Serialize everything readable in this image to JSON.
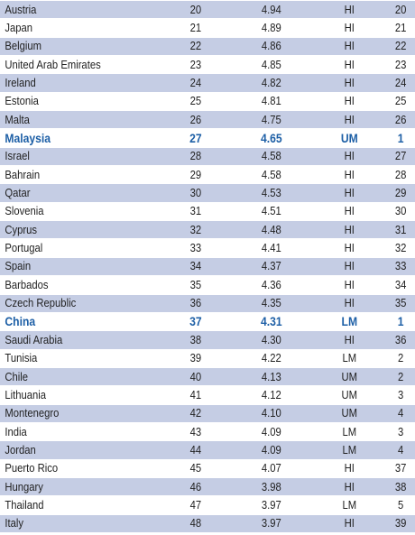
{
  "rows": [
    {
      "country": "Austria",
      "rank": "20",
      "score": "4.94",
      "group": "HI",
      "group_rank": "20",
      "shaded": true,
      "highlight": false
    },
    {
      "country": "Japan",
      "rank": "21",
      "score": "4.89",
      "group": "HI",
      "group_rank": "21",
      "shaded": false,
      "highlight": false
    },
    {
      "country": "Belgium",
      "rank": "22",
      "score": "4.86",
      "group": "HI",
      "group_rank": "22",
      "shaded": true,
      "highlight": false
    },
    {
      "country": "United Arab Emirates",
      "rank": "23",
      "score": "4.85",
      "group": "HI",
      "group_rank": "23",
      "shaded": false,
      "highlight": false
    },
    {
      "country": "Ireland",
      "rank": "24",
      "score": "4.82",
      "group": "HI",
      "group_rank": "24",
      "shaded": true,
      "highlight": false
    },
    {
      "country": "Estonia",
      "rank": "25",
      "score": "4.81",
      "group": "HI",
      "group_rank": "25",
      "shaded": false,
      "highlight": false
    },
    {
      "country": "Malta",
      "rank": "26",
      "score": "4.75",
      "group": "HI",
      "group_rank": "26",
      "shaded": true,
      "highlight": false
    },
    {
      "country": "Malaysia",
      "rank": "27",
      "score": "4.65",
      "group": "UM",
      "group_rank": "1",
      "shaded": false,
      "highlight": true
    },
    {
      "country": "Israel",
      "rank": "28",
      "score": "4.58",
      "group": "HI",
      "group_rank": "27",
      "shaded": true,
      "highlight": false
    },
    {
      "country": "Bahrain",
      "rank": "29",
      "score": "4.58",
      "group": "HI",
      "group_rank": "28",
      "shaded": false,
      "highlight": false
    },
    {
      "country": "Qatar",
      "rank": "30",
      "score": "4.53",
      "group": "HI",
      "group_rank": "29",
      "shaded": true,
      "highlight": false
    },
    {
      "country": "Slovenia",
      "rank": "31",
      "score": "4.51",
      "group": "HI",
      "group_rank": "30",
      "shaded": false,
      "highlight": false
    },
    {
      "country": "Cyprus",
      "rank": "32",
      "score": "4.48",
      "group": "HI",
      "group_rank": "31",
      "shaded": true,
      "highlight": false
    },
    {
      "country": "Portugal",
      "rank": "33",
      "score": "4.41",
      "group": "HI",
      "group_rank": "32",
      "shaded": false,
      "highlight": false
    },
    {
      "country": "Spain",
      "rank": "34",
      "score": "4.37",
      "group": "HI",
      "group_rank": "33",
      "shaded": true,
      "highlight": false
    },
    {
      "country": "Barbados",
      "rank": "35",
      "score": "4.36",
      "group": "HI",
      "group_rank": "34",
      "shaded": false,
      "highlight": false
    },
    {
      "country": "Czech Republic",
      "rank": "36",
      "score": "4.35",
      "group": "HI",
      "group_rank": "35",
      "shaded": true,
      "highlight": false
    },
    {
      "country": "China",
      "rank": "37",
      "score": "4.31",
      "group": "LM",
      "group_rank": "1",
      "shaded": false,
      "highlight": true
    },
    {
      "country": "Saudi Arabia",
      "rank": "38",
      "score": "4.30",
      "group": "HI",
      "group_rank": "36",
      "shaded": true,
      "highlight": false
    },
    {
      "country": "Tunisia",
      "rank": "39",
      "score": "4.22",
      "group": "LM",
      "group_rank": "2",
      "shaded": false,
      "highlight": false
    },
    {
      "country": "Chile",
      "rank": "40",
      "score": "4.13",
      "group": "UM",
      "group_rank": "2",
      "shaded": true,
      "highlight": false
    },
    {
      "country": "Lithuania",
      "rank": "41",
      "score": "4.12",
      "group": "UM",
      "group_rank": "3",
      "shaded": false,
      "highlight": false
    },
    {
      "country": "Montenegro",
      "rank": "42",
      "score": "4.10",
      "group": "UM",
      "group_rank": "4",
      "shaded": true,
      "highlight": false
    },
    {
      "country": "India",
      "rank": "43",
      "score": "4.09",
      "group": "LM",
      "group_rank": "3",
      "shaded": false,
      "highlight": false
    },
    {
      "country": "Jordan",
      "rank": "44",
      "score": "4.09",
      "group": "LM",
      "group_rank": "4",
      "shaded": true,
      "highlight": false
    },
    {
      "country": "Puerto Rico",
      "rank": "45",
      "score": "4.07",
      "group": "HI",
      "group_rank": "37",
      "shaded": false,
      "highlight": false
    },
    {
      "country": "Hungary",
      "rank": "46",
      "score": "3.98",
      "group": "HI",
      "group_rank": "38",
      "shaded": true,
      "highlight": false
    },
    {
      "country": "Thailand",
      "rank": "47",
      "score": "3.97",
      "group": "LM",
      "group_rank": "5",
      "shaded": false,
      "highlight": false
    },
    {
      "country": "Italy",
      "rank": "48",
      "score": "3.97",
      "group": "HI",
      "group_rank": "39",
      "shaded": true,
      "highlight": false
    }
  ],
  "colors": {
    "shaded_row": "#c5cde4",
    "highlight_text": "#1d5fa6",
    "text": "#222222"
  }
}
